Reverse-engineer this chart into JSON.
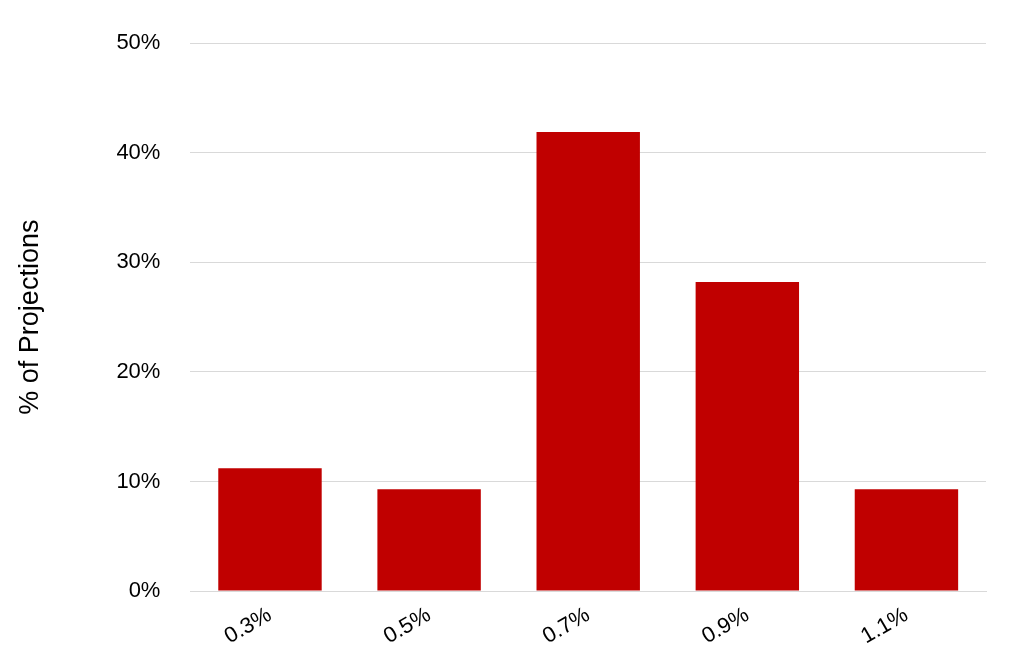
{
  "chart_data": {
    "type": "bar",
    "ylabel": "% of Projections",
    "categories": [
      "0.3%",
      "0.5%",
      "0.7%",
      "0.9%",
      "1.1%"
    ],
    "values": [
      11.2,
      9.3,
      41.9,
      28.2,
      9.3
    ],
    "color": "#c00000",
    "ylim": [
      0,
      50
    ],
    "yticks": [
      {
        "value": 0,
        "label": "0%"
      },
      {
        "value": 10,
        "label": "10%"
      },
      {
        "value": 20,
        "label": "20%"
      },
      {
        "value": 30,
        "label": "30%"
      },
      {
        "value": 40,
        "label": "40%"
      },
      {
        "value": 50,
        "label": "50%"
      }
    ],
    "grid": "y",
    "legend": false
  }
}
